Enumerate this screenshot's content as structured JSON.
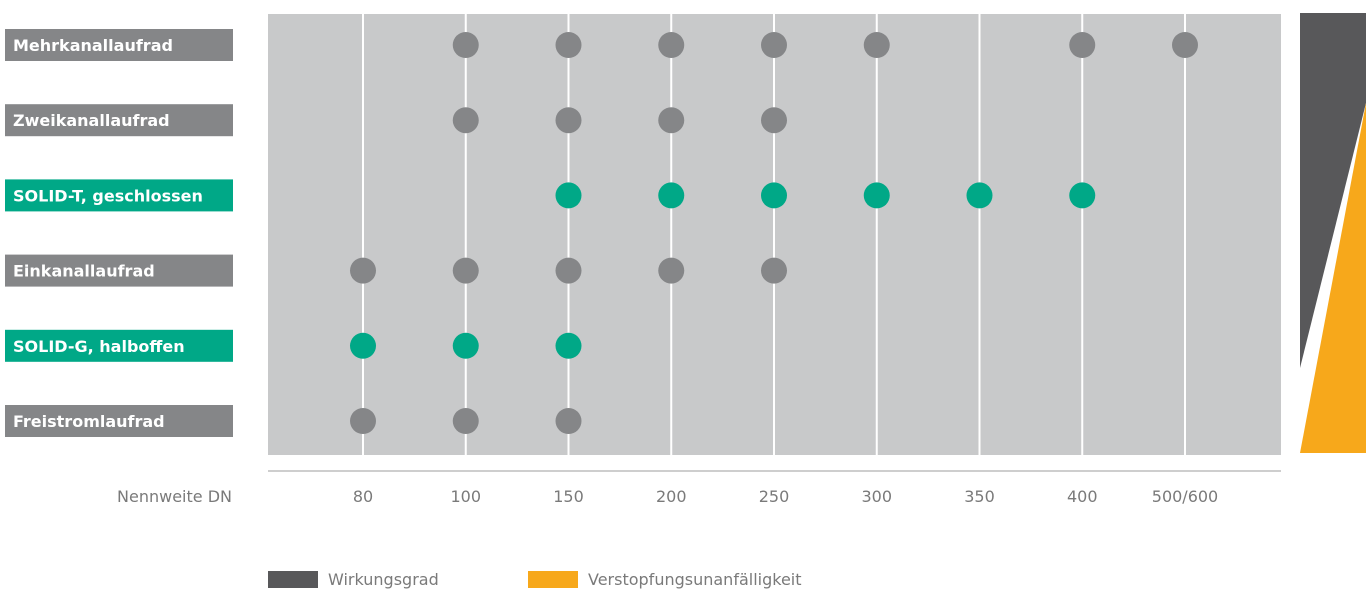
{
  "chart_data": {
    "type": "scatter",
    "xlabel": "Nennweite DN",
    "x_ticks": [
      "80",
      "100",
      "150",
      "200",
      "250",
      "300",
      "350",
      "400",
      "500/600"
    ],
    "categories": [
      {
        "label": "Mehrkanallaufrad",
        "highlight": false,
        "values": [
          "100",
          "150",
          "200",
          "250",
          "300",
          "400",
          "500/600"
        ]
      },
      {
        "label": "Zweikanallaufrad",
        "highlight": false,
        "values": [
          "100",
          "150",
          "200",
          "250"
        ]
      },
      {
        "label": "SOLID-T, geschlossen",
        "highlight": true,
        "values": [
          "150",
          "200",
          "250",
          "300",
          "350",
          "400"
        ]
      },
      {
        "label": "Einkanallaufrad",
        "highlight": false,
        "values": [
          "80",
          "100",
          "150",
          "200",
          "250"
        ]
      },
      {
        "label": "SOLID-G, halboffen",
        "highlight": true,
        "values": [
          "80",
          "100",
          "150"
        ]
      },
      {
        "label": "Freistromlaufrad",
        "highlight": false,
        "values": [
          "80",
          "100",
          "150"
        ]
      }
    ],
    "legend": [
      {
        "label": "Wirkungsgrad",
        "color": "#58585a"
      },
      {
        "label": "Verstopfungsunanfälligkeit",
        "color": "#f7a81b"
      }
    ],
    "colors": {
      "plot_bg": "#c8c9ca",
      "gray_dot": "#858688",
      "green": "#00a887",
      "label_gray": "#858688",
      "axis": "#bdbdbd",
      "dark_wedge": "#58585a",
      "orange_wedge": "#f7a81b"
    }
  }
}
